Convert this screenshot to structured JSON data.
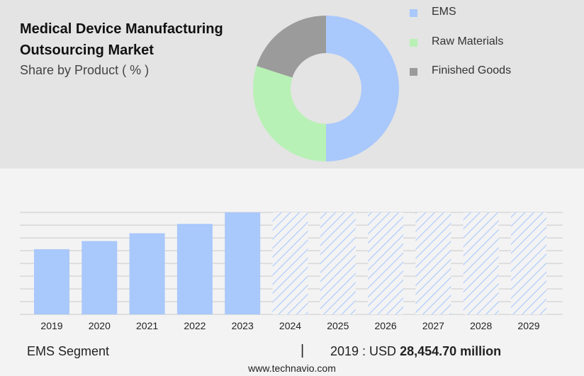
{
  "title_line1": "Medical Device Manufacturing",
  "title_line2": "Outsourcing Market",
  "subtitle": "Share by Product ( % )",
  "colors": {
    "ems": "#a9c8fb",
    "raw_materials": "#b8f1b5",
    "finished_goods": "#9b9b9b",
    "forecast_hatch": "#a9c8fb"
  },
  "chart_data": [
    {
      "type": "pie",
      "donut": true,
      "title": "Share by Product ( % )",
      "legend_position": "right",
      "series": [
        {
          "name": "EMS",
          "value": 50
        },
        {
          "name": "Raw Materials",
          "value": 30
        },
        {
          "name": "Finished Goods",
          "value": 20
        }
      ]
    },
    {
      "type": "bar",
      "categories": [
        "2019",
        "2020",
        "2021",
        "2022",
        "2023",
        "2024",
        "2025",
        "2026",
        "2027",
        "2028",
        "2029"
      ],
      "values": [
        28454.7,
        32000,
        35400,
        39500,
        44500,
        44500,
        44500,
        44500,
        44500,
        44500,
        44500
      ],
      "forecast_from": "2024",
      "ylim": [
        0,
        44500
      ],
      "grid": true
    }
  ],
  "footer": {
    "segment_label": "EMS Segment",
    "separator": "|",
    "value_prefix": "2019 : USD",
    "value_amount": "28,454.70 million",
    "url": "www.technavio.com"
  }
}
